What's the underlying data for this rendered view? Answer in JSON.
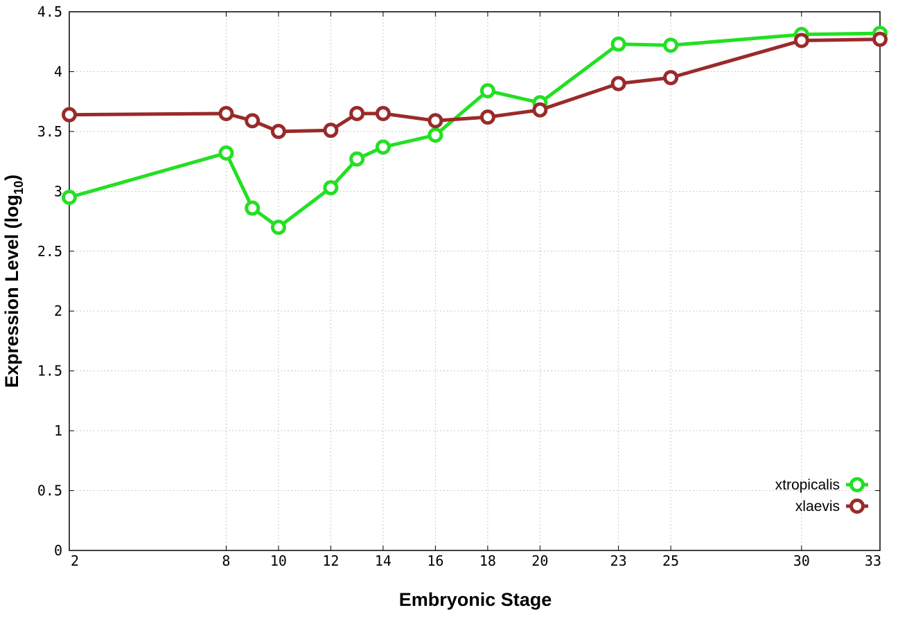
{
  "chart_data": {
    "type": "line",
    "xlabel": "Embryonic Stage",
    "ylabel": "Expression Level (log",
    "ylabel_sub": "10",
    "ylabel_close": ")",
    "xlim": [
      2,
      33
    ],
    "ylim": [
      0,
      4.5
    ],
    "x": [
      2,
      8,
      9,
      10,
      12,
      13,
      14,
      16,
      18,
      20,
      23,
      25,
      30,
      33
    ],
    "x_ticks": [
      2,
      8,
      10,
      12,
      14,
      16,
      18,
      20,
      23,
      25,
      30,
      33
    ],
    "y_ticks": [
      {
        "value": 0,
        "label": "0"
      },
      {
        "value": 0.5,
        "label": "0.5"
      },
      {
        "value": 1,
        "label": "1"
      },
      {
        "value": 1.5,
        "label": "1.5"
      },
      {
        "value": 2,
        "label": "2"
      },
      {
        "value": 2.5,
        "label": "2.5"
      },
      {
        "value": 3,
        "label": "3"
      },
      {
        "value": 3.5,
        "label": "3.5"
      },
      {
        "value": 4,
        "label": "4"
      },
      {
        "value": 4.5,
        "label": "4.5"
      }
    ],
    "grid": true,
    "legend_position": "bottom-right",
    "series": [
      {
        "name": "xtropicalis",
        "color": "#22e022",
        "values": [
          2.95,
          3.32,
          2.86,
          2.7,
          3.03,
          3.27,
          3.37,
          3.47,
          3.84,
          3.74,
          4.23,
          4.22,
          4.31,
          4.32
        ]
      },
      {
        "name": "xlaevis",
        "color": "#9a2a2a",
        "values": [
          3.64,
          3.65,
          3.59,
          3.5,
          3.51,
          3.65,
          3.65,
          3.59,
          3.62,
          3.68,
          3.9,
          3.95,
          4.26,
          4.27
        ]
      }
    ]
  }
}
